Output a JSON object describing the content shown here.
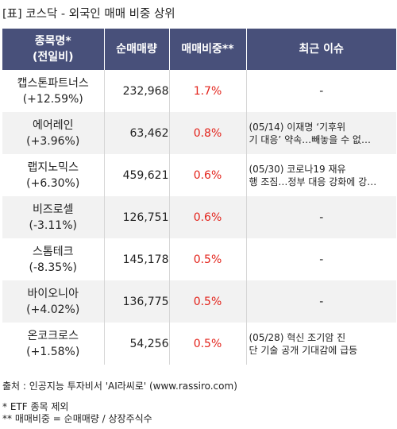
{
  "title": "[표] 코스닥 - 외국인 매매 비중 상위",
  "headers": {
    "name_line1": "종목명*",
    "name_line2": "(전일비)",
    "volume": "순매매량",
    "ratio": "매매비중**",
    "issue": "최근 이슈"
  },
  "rows": [
    {
      "name": "캡스톤파트너스",
      "change": "(+12.59%)",
      "volume": "232,968",
      "ratio": "1.7%",
      "issue_line1": "-",
      "issue_line2": ""
    },
    {
      "name": "에어레인",
      "change": "(+3.96%)",
      "volume": "63,462",
      "ratio": "0.8%",
      "issue_line1": "(05/14) 이재명 ‘기후위",
      "issue_line2": "기 대응’ 약속…빼놓을 수 없…"
    },
    {
      "name": "랩지노믹스",
      "change": "(+6.30%)",
      "volume": "459,621",
      "ratio": "0.6%",
      "issue_line1": "(05/30) 코로나19 재유",
      "issue_line2": "행 조짐…정부 대응 강화에 강…"
    },
    {
      "name": "비즈로셀",
      "change": "(-3.11%)",
      "volume": "126,751",
      "ratio": "0.6%",
      "issue_line1": "-",
      "issue_line2": ""
    },
    {
      "name": "스톰테크",
      "change": "(-8.35%)",
      "volume": "145,178",
      "ratio": "0.5%",
      "issue_line1": "-",
      "issue_line2": ""
    },
    {
      "name": "바이오니아",
      "change": "(+4.02%)",
      "volume": "136,775",
      "ratio": "0.5%",
      "issue_line1": "-",
      "issue_line2": ""
    },
    {
      "name": "온코크로스",
      "change": "(+1.58%)",
      "volume": "54,256",
      "ratio": "0.5%",
      "issue_line1": "(05/28) 혁신 조기암 진",
      "issue_line2": "단 기술 공개 기대감에 급등"
    }
  ],
  "footer": {
    "source": "출처 : 인공지능 투자비서 'AI라씨로' (www.rassiro.com)",
    "note1": "* ETF 종목 제외",
    "note2": "** 매매비중 = 순매매량 / 상장주식수"
  },
  "colors": {
    "header_bg": "#48507a",
    "ratio_text": "#e3231b",
    "alt_row_bg": "#f2f2f2"
  }
}
